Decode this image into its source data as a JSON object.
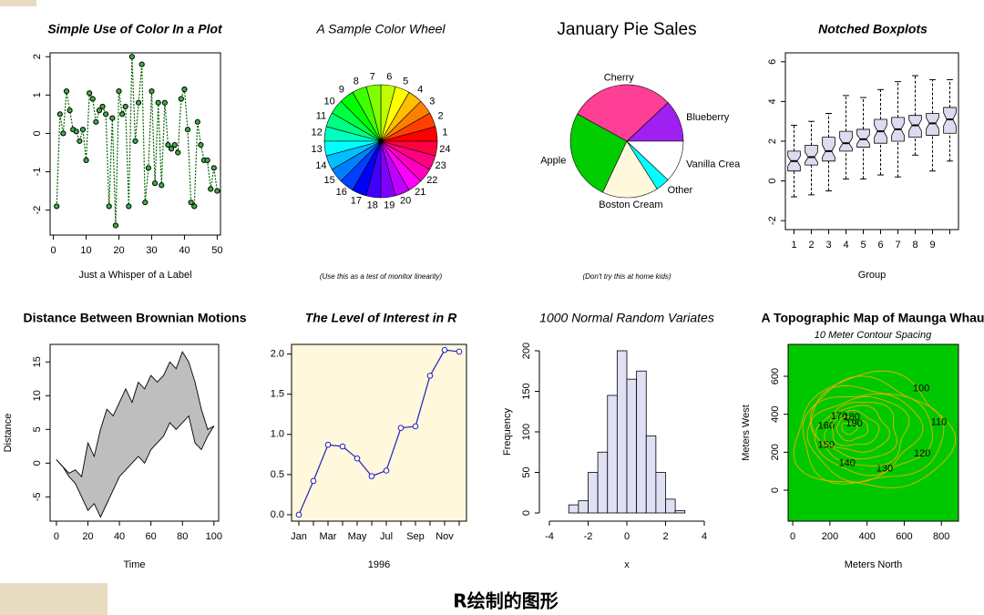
{
  "caption": "R绘制的图形",
  "chart_data": [
    {
      "type": "line",
      "title": "Simple Use of Color In a Plot",
      "title_color": "#1a2a9a",
      "xlabel": "Just a Whisper of a Label",
      "xlabel_color": "#d8d8d8",
      "x": [
        1,
        2,
        3,
        4,
        5,
        6,
        7,
        8,
        9,
        10,
        11,
        12,
        13,
        14,
        15,
        16,
        17,
        18,
        19,
        20,
        21,
        22,
        23,
        24,
        25,
        26,
        27,
        28,
        29,
        30,
        31,
        32,
        33,
        34,
        35,
        36,
        37,
        38,
        39,
        40,
        41,
        42,
        43,
        44,
        45,
        46,
        47,
        48,
        49,
        50
      ],
      "values": [
        -1.9,
        0.5,
        0,
        1.1,
        0.6,
        0.1,
        0.05,
        -0.2,
        0.1,
        -0.7,
        1.05,
        0.9,
        0.3,
        0.6,
        0.7,
        0.5,
        -1.9,
        0.4,
        -2.4,
        1.1,
        0.5,
        0.7,
        -1.9,
        2.0,
        -0.2,
        0.8,
        1.8,
        -1.8,
        -0.9,
        1.1,
        -1.3,
        0.8,
        -1.35,
        0.8,
        -0.3,
        -0.4,
        -0.3,
        -0.5,
        0.9,
        1.15,
        0.1,
        -1.8,
        -1.9,
        0.3,
        -0.3,
        -0.7,
        -0.7,
        -1.45,
        -0.9,
        -1.5
      ],
      "color": "#006400",
      "marker_color": "#3cb043",
      "xlim": [
        -1,
        51
      ],
      "ylim": [
        -2.65,
        2.1
      ],
      "xticks": [
        0,
        10,
        20,
        30,
        40,
        50
      ],
      "yticks": [
        -2,
        -1,
        0,
        1,
        2
      ]
    },
    {
      "type": "pie",
      "title": "A Sample Color Wheel",
      "title_color": "#000000",
      "subtitle": "(Use this as a test of monitor linearity)",
      "categories": [
        "1",
        "2",
        "3",
        "4",
        "5",
        "6",
        "7",
        "8",
        "9",
        "10",
        "11",
        "12",
        "13",
        "14",
        "15",
        "16",
        "17",
        "18",
        "19",
        "20",
        "21",
        "22",
        "23",
        "24"
      ],
      "values": [
        1,
        1,
        1,
        1,
        1,
        1,
        1,
        1,
        1,
        1,
        1,
        1,
        1,
        1,
        1,
        1,
        1,
        1,
        1,
        1,
        1,
        1,
        1,
        1
      ],
      "colors": [
        "hsl(0,100%,50%)",
        "hsl(15,100%,50%)",
        "hsl(30,100%,50%)",
        "hsl(45,100%,50%)",
        "hsl(60,100%,50%)",
        "hsl(75,100%,50%)",
        "hsl(90,100%,50%)",
        "hsl(105,100%,50%)",
        "hsl(120,100%,50%)",
        "hsl(135,100%,50%)",
        "hsl(150,100%,50%)",
        "hsl(165,100%,50%)",
        "hsl(180,100%,50%)",
        "hsl(195,100%,50%)",
        "hsl(210,100%,50%)",
        "hsl(225,100%,50%)",
        "hsl(240,100%,50%)",
        "hsl(255,100%,50%)",
        "hsl(270,100%,50%)",
        "hsl(285,100%,50%)",
        "hsl(300,100%,50%)",
        "hsl(315,100%,50%)",
        "hsl(330,100%,50%)",
        "hsl(345,100%,50%)"
      ]
    },
    {
      "type": "pie",
      "title": "January Pie Sales",
      "title_color": "#000000",
      "subtitle": "(Don't try this at home kids)",
      "categories": [
        "Blueberry",
        "Cherry",
        "Apple",
        "Boston Cream",
        "Other",
        "Vanilla Crea"
      ],
      "values": [
        0.12,
        0.3,
        0.26,
        0.16,
        0.04,
        0.12
      ],
      "colors": [
        "#a020f0",
        "#ff3e96",
        "#00cd00",
        "#fff8dc",
        "#00ffff",
        "#ffffff"
      ]
    },
    {
      "type": "box",
      "title": "Notched Boxplots",
      "title_color": "#000000",
      "xlabel": "Group",
      "categories": [
        "1",
        "2",
        "3",
        "4",
        "5",
        "6",
        "7",
        "8",
        "9",
        null
      ],
      "low": [
        -0.8,
        -0.7,
        -0.5,
        0.1,
        0.1,
        0.3,
        0.2,
        1.3,
        0.5,
        1.0
      ],
      "q1": [
        0.5,
        0.8,
        1.0,
        1.5,
        1.7,
        1.9,
        2.0,
        2.2,
        2.3,
        2.4
      ],
      "median": [
        1.0,
        1.2,
        1.5,
        1.9,
        2.1,
        2.5,
        2.6,
        2.8,
        2.9,
        3.1
      ],
      "q3": [
        1.5,
        1.8,
        2.2,
        2.5,
        2.6,
        3.1,
        3.2,
        3.3,
        3.4,
        3.7
      ],
      "high": [
        2.8,
        3.0,
        3.4,
        4.3,
        4.2,
        4.6,
        5.0,
        5.3,
        5.1,
        5.1
      ],
      "color": "#dcdcf0",
      "ylim": [
        -2.45,
        6.45
      ],
      "yticks": [
        -2,
        0,
        2,
        4,
        6
      ]
    },
    {
      "type": "area",
      "title": "Distance Between Brownian Motions",
      "title_color": "#000000",
      "xlabel": "Time",
      "ylabel": "Distance",
      "x": [
        0,
        4,
        8,
        12,
        16,
        20,
        24,
        28,
        32,
        36,
        40,
        44,
        48,
        52,
        56,
        60,
        64,
        68,
        72,
        76,
        80,
        84,
        88,
        92,
        96,
        100
      ],
      "series": [
        {
          "values": [
            0.5,
            -0.5,
            -1.5,
            -1,
            -2,
            3,
            1,
            5,
            8,
            7,
            9,
            11,
            9,
            12,
            11,
            13,
            12,
            13,
            15,
            14,
            16.5,
            15,
            12,
            8,
            5,
            5.5
          ]
        },
        {
          "values": [
            0.5,
            -0.5,
            -2,
            -3,
            -5,
            -7,
            -6,
            -8,
            -6,
            -4,
            -2,
            -1,
            0,
            1,
            0,
            2,
            3,
            4,
            6,
            5,
            6,
            7,
            3,
            2,
            4,
            5.5
          ]
        }
      ],
      "color": "#bebebe",
      "xlim": [
        -4,
        103
      ],
      "ylim": [
        -8.6,
        17.6
      ],
      "xticks": [
        0,
        20,
        40,
        60,
        80,
        100
      ],
      "yticks": [
        -5,
        0,
        5,
        10,
        15
      ]
    },
    {
      "type": "line",
      "title": "The Level of Interest in R",
      "title_color": "#e02020",
      "xlabel": "1996",
      "xlabel_color": "#e02020",
      "axis_label_color": "#2020b0",
      "categories": [
        "Jan",
        null,
        "Mar",
        null,
        "May",
        null,
        "Jul",
        null,
        "Sep",
        null,
        "Nov",
        null
      ],
      "values": [
        0,
        0.42,
        0.87,
        0.85,
        0.7,
        0.48,
        0.55,
        1.08,
        1.1,
        1.73,
        2.05,
        2.03
      ],
      "color": "#2020c0",
      "marker_color": "#ffffff",
      "background": "#fff8dc",
      "ylim": [
        -0.08,
        2.12
      ],
      "yticks": [
        {
          "value": 0,
          "label": "0.0"
        },
        0.5,
        {
          "value": 1,
          "label": "1.0"
        },
        1.5,
        {
          "value": 2,
          "label": "2.0"
        }
      ]
    },
    {
      "type": "histogram",
      "title": "1000 Normal Random Variates",
      "title_color": "#000000",
      "xlabel": "x",
      "ylabel": "Frequency",
      "bins": [
        -3,
        -2.5,
        -2,
        -1.5,
        -1,
        -0.5,
        0,
        0.5,
        1,
        1.5,
        2,
        2.5,
        3
      ],
      "values": [
        10,
        15,
        50,
        75,
        145,
        200,
        165,
        175,
        95,
        50,
        17,
        3
      ],
      "color": "#e0e0f5",
      "xlim": [
        -4,
        4
      ],
      "ylim": [
        0,
        200
      ],
      "xticks": [
        -4,
        -2,
        0,
        2,
        4
      ],
      "yticks": [
        0,
        50,
        100,
        150,
        200
      ]
    },
    {
      "type": "contour",
      "title": "A Topographic Map of Maunga Whau",
      "title_color": "#000000",
      "subtitle": "10 Meter Contour Spacing",
      "xlabel": "Meters North",
      "ylabel": "Meters West",
      "levels": [
        100,
        110,
        120,
        130,
        140,
        150,
        160,
        170,
        180,
        190
      ],
      "color": "#e8b000",
      "background": "#00c800",
      "xlim": [
        -25,
        892
      ],
      "ylim": [
        -163,
        768
      ],
      "xticks": [
        0,
        200,
        400,
        600,
        800
      ],
      "yticks": [
        0,
        200,
        400,
        600
      ]
    }
  ]
}
